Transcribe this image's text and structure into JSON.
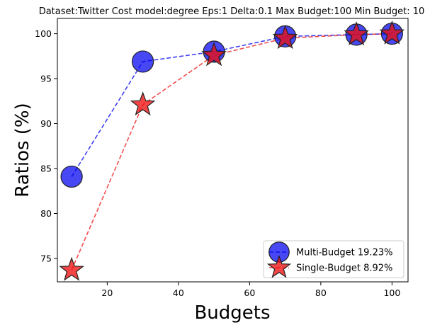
{
  "chart_data": {
    "type": "line",
    "title": "Dataset:Twitter Cost model:degree Eps:1 Delta:0.1 Max Budget:100 Min Budget: 10",
    "xlabel": "Budgets",
    "ylabel": "Ratios (%)",
    "xlim": [
      6,
      104.5
    ],
    "ylim": [
      72.4,
      101.7
    ],
    "xticks": [
      20,
      40,
      60,
      80,
      100
    ],
    "yticks": [
      75,
      80,
      85,
      90,
      95,
      100
    ],
    "x": [
      10,
      30,
      50,
      70,
      90,
      100
    ],
    "grid": false,
    "legend_position": "lower-right",
    "series": [
      {
        "name": "Multi-Budget 19.23%",
        "values": [
          84.1,
          96.9,
          98.0,
          99.7,
          99.9,
          100.0
        ],
        "color": "#0000ee",
        "marker": "circle",
        "line_style": "dashed"
      },
      {
        "name": "Single-Budget 8.92%",
        "values": [
          73.7,
          92.1,
          97.6,
          99.5,
          99.9,
          100.0
        ],
        "color": "#ee1111",
        "marker": "star",
        "line_style": "dashed"
      }
    ]
  }
}
